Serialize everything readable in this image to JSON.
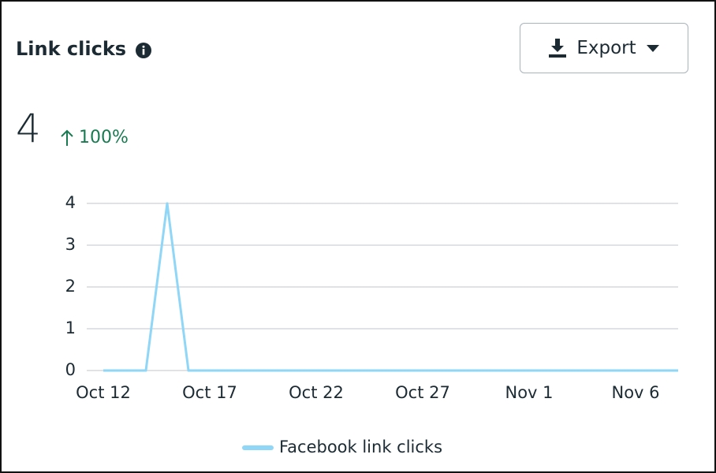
{
  "header": {
    "title": "Link clicks",
    "export_button": "Export",
    "total": "4",
    "change": "100%"
  },
  "chart_data": {
    "type": "line",
    "categories": [
      "Oct 12",
      null,
      null,
      null,
      null,
      "Oct 17",
      null,
      null,
      null,
      null,
      "Oct 22",
      null,
      null,
      null,
      null,
      "Oct 27",
      null,
      null,
      null,
      null,
      "Nov 1",
      null,
      null,
      null,
      null,
      "Nov 6",
      null,
      null
    ],
    "series": [
      {
        "name": "Facebook link clicks",
        "color": "#8fd6f7",
        "values": [
          0,
          0,
          0,
          4,
          0,
          0,
          0,
          0,
          0,
          0,
          0,
          0,
          0,
          0,
          0,
          0,
          0,
          0,
          0,
          0,
          0,
          0,
          0,
          0,
          0,
          0,
          0,
          0
        ]
      }
    ],
    "ylim": [
      0,
      4
    ],
    "yticks": [
      0,
      1,
      2,
      3,
      4
    ],
    "grid": true
  }
}
